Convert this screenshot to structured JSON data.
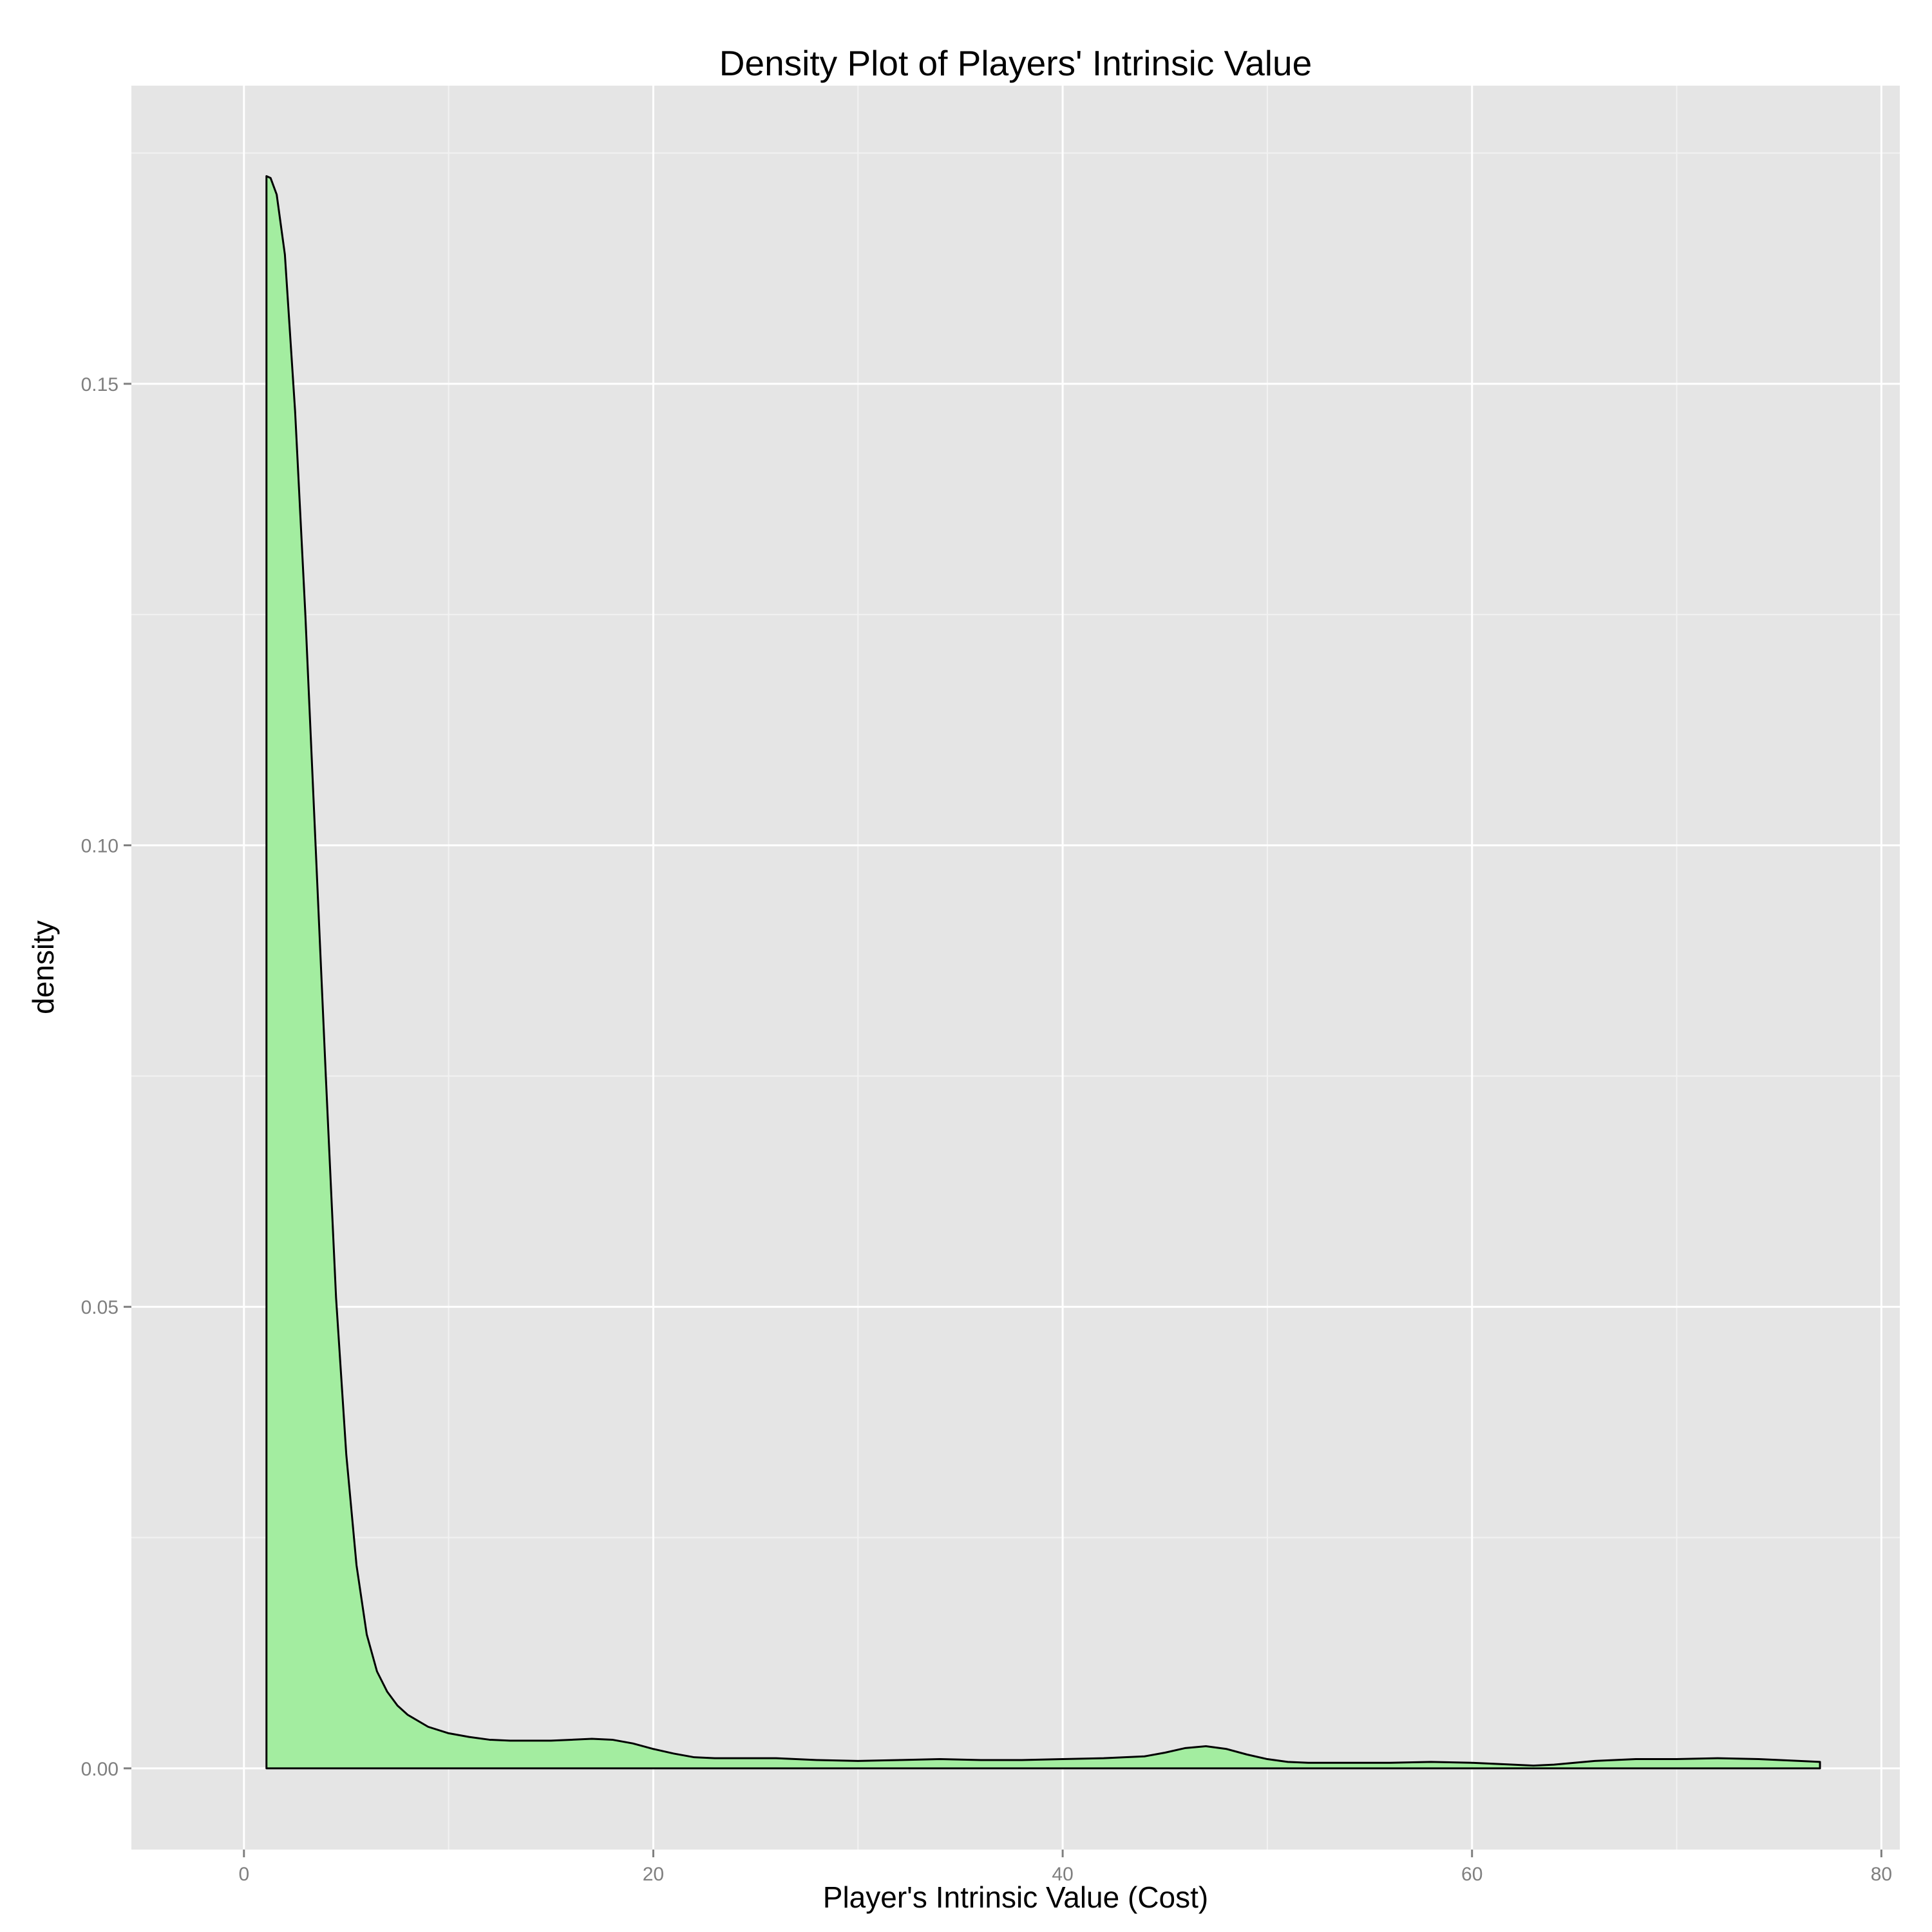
{
  "chart_data": {
    "type": "area",
    "title": "Density Plot of Players' Intrinsic Value",
    "xlabel": "Player's Intrinsic Value (Cost)",
    "ylabel": "density",
    "xlim": [
      -5.5,
      80.9
    ],
    "ylim": [
      -0.0088,
      0.1823
    ],
    "x_ticks": [
      0,
      20,
      40,
      60,
      80
    ],
    "x_tick_labels": [
      "0",
      "20",
      "40",
      "60",
      "80"
    ],
    "y_ticks": [
      0.0,
      0.05,
      0.1,
      0.15
    ],
    "y_tick_labels": [
      "0.00",
      "0.05",
      "0.10",
      "0.15"
    ],
    "grid": true,
    "legend": "none",
    "series": [
      {
        "x": [
          1.1,
          1.3,
          1.6,
          2.0,
          2.5,
          3.0,
          3.5,
          4.0,
          4.5,
          5.0,
          5.5,
          6.0,
          6.5,
          7.0,
          7.5,
          8.0,
          9.0,
          10.0,
          11.0,
          12.0,
          13.0,
          14.0,
          15.0,
          16.0,
          17.0,
          18.0,
          19.0,
          20.0,
          21.0,
          22.0,
          23.0,
          24.0,
          26.0,
          28.0,
          30.0,
          32.0,
          34.0,
          36.0,
          38.0,
          40.0,
          42.0,
          44.0,
          45.0,
          46.0,
          47.0,
          48.0,
          49.0,
          50.0,
          51.0,
          52.0,
          54.0,
          56.0,
          58.0,
          60.0,
          62.0,
          63.0,
          64.0,
          66.0,
          68.0,
          70.0,
          72.0,
          74.0,
          76.0,
          77.0
        ],
        "y": [
          0.1725,
          0.1723,
          0.1705,
          0.164,
          0.147,
          0.125,
          0.1,
          0.075,
          0.051,
          0.034,
          0.022,
          0.0145,
          0.0105,
          0.0083,
          0.0068,
          0.0058,
          0.0045,
          0.0038,
          0.0034,
          0.0031,
          0.003,
          0.003,
          0.003,
          0.0031,
          0.0032,
          0.0031,
          0.0027,
          0.0021,
          0.0016,
          0.0012,
          0.0011,
          0.0011,
          0.0011,
          0.0009,
          0.0008,
          0.0009,
          0.001,
          0.0009,
          0.0009,
          0.001,
          0.0011,
          0.0013,
          0.0017,
          0.0022,
          0.0024,
          0.0021,
          0.0015,
          0.001,
          0.0007,
          0.0006,
          0.0006,
          0.0006,
          0.0007,
          0.0006,
          0.0004,
          0.0003,
          0.0004,
          0.0008,
          0.001,
          0.001,
          0.0011,
          0.001,
          0.0008,
          0.0007
        ]
      }
    ]
  },
  "colors": {
    "panel_background": "#e5e5e5",
    "grid_major": "#ffffff",
    "grid_minor": "#f2f2f2",
    "density_fill": "#a3eda0",
    "density_line": "#000000",
    "tick_mark": "#7f7f7f"
  }
}
